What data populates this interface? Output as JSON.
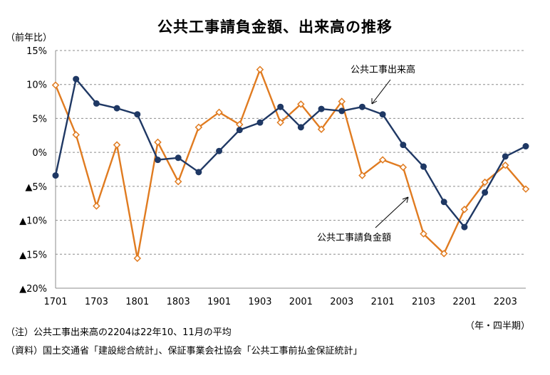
{
  "chart_data": {
    "type": "line",
    "title": "公共工事請負金額、出来高の推移",
    "ylabel": "（前年比）",
    "xlabel": "（年・四半期）",
    "ylim": [
      -20,
      15
    ],
    "y_ticks": [
      {
        "value": 15,
        "label": "15%"
      },
      {
        "value": 10,
        "label": "10%"
      },
      {
        "value": 5,
        "label": "5%"
      },
      {
        "value": 0,
        "label": "0%"
      },
      {
        "value": -5,
        "label": "▲5%"
      },
      {
        "value": -10,
        "label": "▲10%"
      },
      {
        "value": -15,
        "label": "▲15%"
      },
      {
        "value": -20,
        "label": "▲20%"
      }
    ],
    "x_tick_labels": [
      "1701",
      "1703",
      "1801",
      "1803",
      "1901",
      "1903",
      "2001",
      "2003",
      "2101",
      "2103",
      "2201",
      "2203"
    ],
    "x": [
      "1701",
      "1702",
      "1703",
      "1704",
      "1801",
      "1802",
      "1803",
      "1804",
      "1901",
      "1902",
      "1903",
      "1904",
      "2001",
      "2002",
      "2003",
      "2004",
      "2101",
      "2102",
      "2103",
      "2104",
      "2201",
      "2202",
      "2203",
      "2204"
    ],
    "grid": "horizontal-dashed",
    "series": [
      {
        "name": "公共工事出来高",
        "color": "#1f3864",
        "marker": "circle",
        "values": [
          -3.4,
          10.8,
          7.2,
          6.5,
          5.6,
          -1.1,
          -0.8,
          -2.9,
          0.2,
          3.3,
          4.4,
          6.7,
          3.7,
          6.4,
          6.1,
          6.7,
          5.6,
          1.1,
          -2.1,
          -7.3,
          -11.0,
          -5.9,
          -0.6,
          0.9
        ]
      },
      {
        "name": "公共工事請負金額",
        "color": "#e07b20",
        "marker": "diamond",
        "values": [
          9.9,
          2.6,
          -7.9,
          1.1,
          -15.6,
          1.5,
          -4.3,
          3.7,
          5.9,
          4.1,
          12.2,
          4.4,
          7.1,
          3.4,
          7.5,
          -3.4,
          -1.1,
          -2.2,
          -12.0,
          -14.9,
          -8.4,
          -4.4,
          -1.9,
          -5.4
        ]
      }
    ],
    "annotations": [
      "公共工事出来高",
      "公共工事請負金額"
    ],
    "notes": [
      "（注）公共工事出来高の2204は22年10、11月の平均",
      "（資料）国土交通省「建設総合統計」、保証事業会社協会「公共工事前払金保証統計」"
    ]
  }
}
